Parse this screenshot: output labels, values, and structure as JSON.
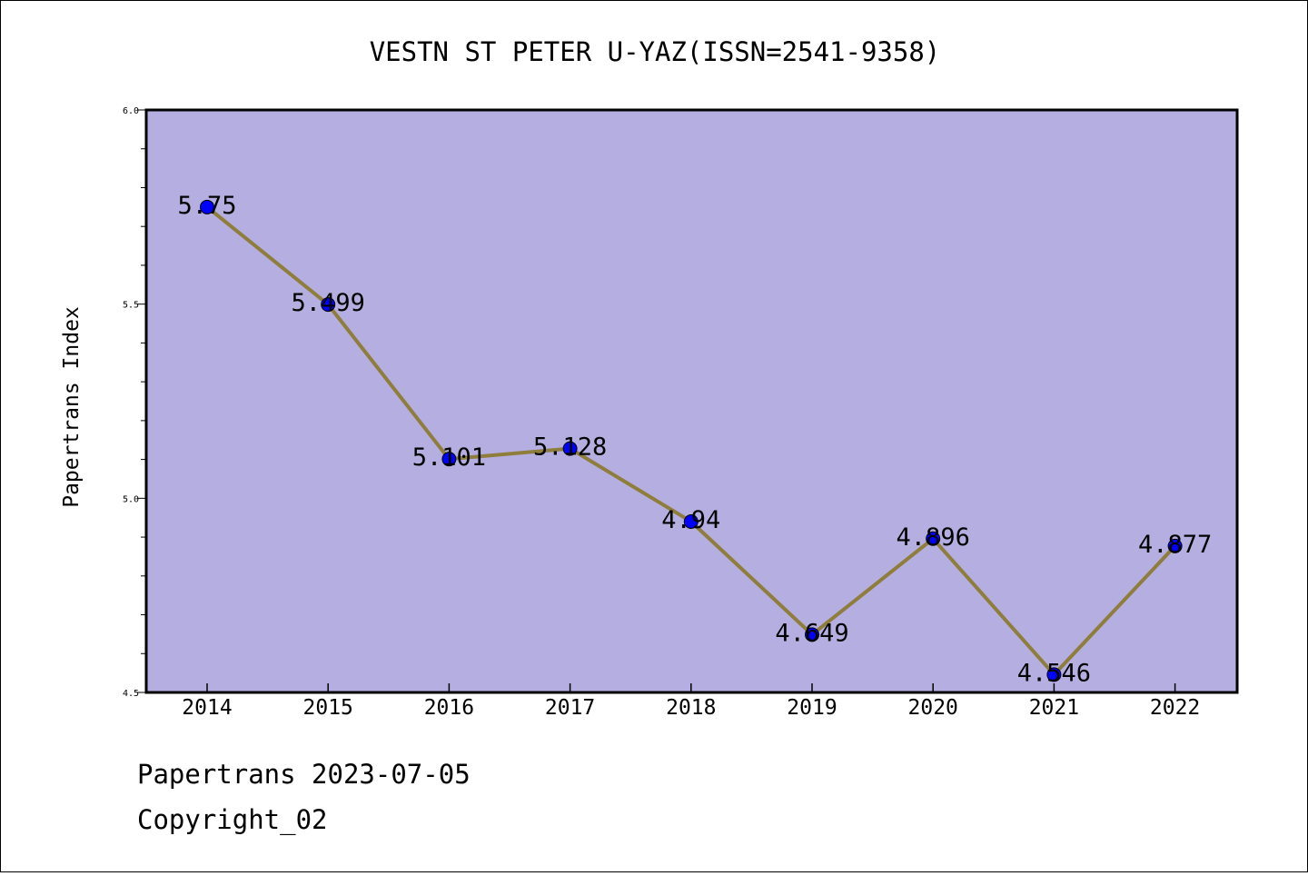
{
  "chart_data": {
    "type": "line",
    "title": "VESTN ST PETER U-YAZ(ISSN=2541-9358)",
    "xlabel": "",
    "ylabel": "Papertrans Index",
    "x": [
      "2014",
      "2015",
      "2016",
      "2017",
      "2018",
      "2019",
      "2020",
      "2021",
      "2022"
    ],
    "values": [
      5.75,
      5.499,
      5.101,
      5.128,
      4.94,
      4.649,
      4.896,
      4.546,
      4.877
    ],
    "data_labels": [
      "5.75",
      "5.499",
      "5.101",
      "5.128",
      "4.94",
      "4.649",
      "4.896",
      "4.546",
      "4.877"
    ],
    "ylim": [
      4.5,
      6.0
    ],
    "yticks": [
      "4.5",
      "5.0",
      "5.5",
      "6.0"
    ],
    "grid": false,
    "colors": {
      "plot_background": "#b5afe1",
      "line": "#8e7d3b",
      "marker": "#0000ff"
    }
  },
  "footer": {
    "line1": "Papertrans 2023-07-05",
    "line2": "Copyright_02"
  }
}
